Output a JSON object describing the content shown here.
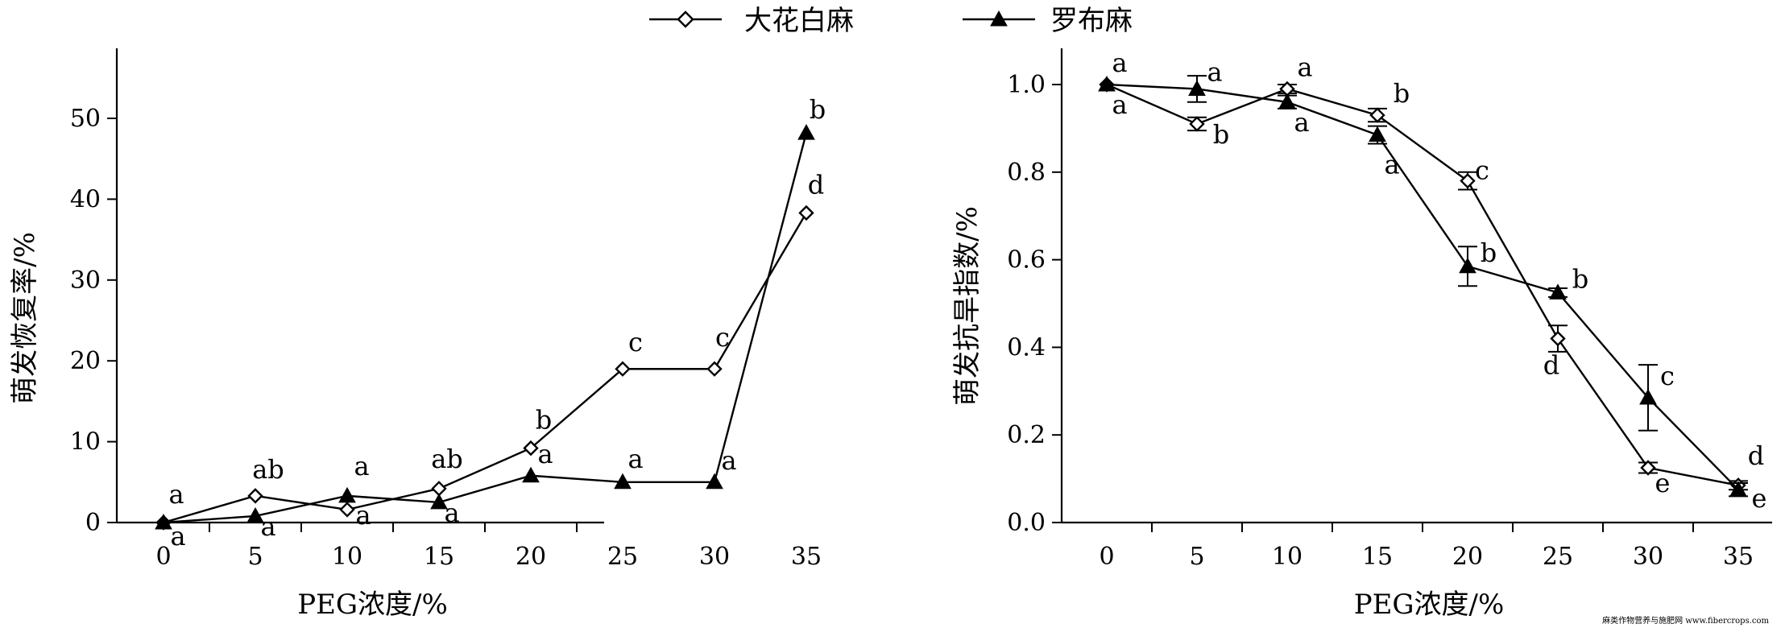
{
  "legend": [
    {
      "name": "大花白麻",
      "marker": "open-diamond"
    },
    {
      "name": "罗布麻",
      "marker": "filled-triangle"
    }
  ],
  "chart_data": [
    {
      "type": "line",
      "ylabel": "萌发恢复率/%",
      "xlabel": "PEG浓度/%",
      "x": [
        0,
        5,
        10,
        15,
        20,
        25,
        30,
        35
      ],
      "ylim": [
        0,
        50
      ],
      "yticks": [
        0,
        10,
        20,
        30,
        40,
        50
      ],
      "grid": false,
      "series": [
        {
          "name": "大花白麻",
          "marker": "open-diamond",
          "values": [
            0,
            3.3,
            1.6,
            4.2,
            9.2,
            19,
            19,
            38.3
          ],
          "labels": [
            "a",
            "ab",
            "a",
            "ab",
            "b",
            "c",
            "c",
            "d"
          ]
        },
        {
          "name": "罗布麻",
          "marker": "filled-triangle",
          "values": [
            0,
            0.8,
            3.3,
            2.5,
            5.8,
            5,
            5,
            48.2
          ],
          "labels": [
            "a",
            "a",
            "a",
            "a",
            "a",
            "a",
            "a",
            "b"
          ]
        }
      ]
    },
    {
      "type": "line",
      "ylabel": "萌发抗旱指数/%",
      "xlabel": "PEG浓度/%",
      "x": [
        0,
        5,
        10,
        15,
        20,
        25,
        30,
        35
      ],
      "ylim": [
        0,
        1
      ],
      "yticks": [
        "0.0",
        "0.2",
        "0.4",
        "0.6",
        "0.8",
        "1.0"
      ],
      "grid": false,
      "series": [
        {
          "name": "大花白麻",
          "marker": "open-diamond",
          "values": [
            1.0,
            0.91,
            0.99,
            0.93,
            0.78,
            0.42,
            0.125,
            0.085
          ],
          "errors": [
            0,
            0.015,
            0.01,
            0.015,
            0.02,
            0.03,
            0.012,
            0.01
          ],
          "labels": [
            "a",
            "b",
            "a",
            "b",
            "c",
            "d",
            "e",
            "d"
          ]
        },
        {
          "name": "罗布麻",
          "marker": "filled-triangle",
          "values": [
            1.0,
            0.99,
            0.96,
            0.885,
            0.585,
            0.525,
            0.285,
            0.075
          ],
          "errors": [
            0,
            0.03,
            0.015,
            0.02,
            0.045,
            0.01,
            0.075,
            0.015
          ],
          "labels": [
            "a",
            "a",
            "a",
            "a",
            "b",
            "b",
            "c",
            "e"
          ]
        }
      ]
    }
  ],
  "watermark": "麻类作物营养与施肥网 www.fibercrops.com"
}
